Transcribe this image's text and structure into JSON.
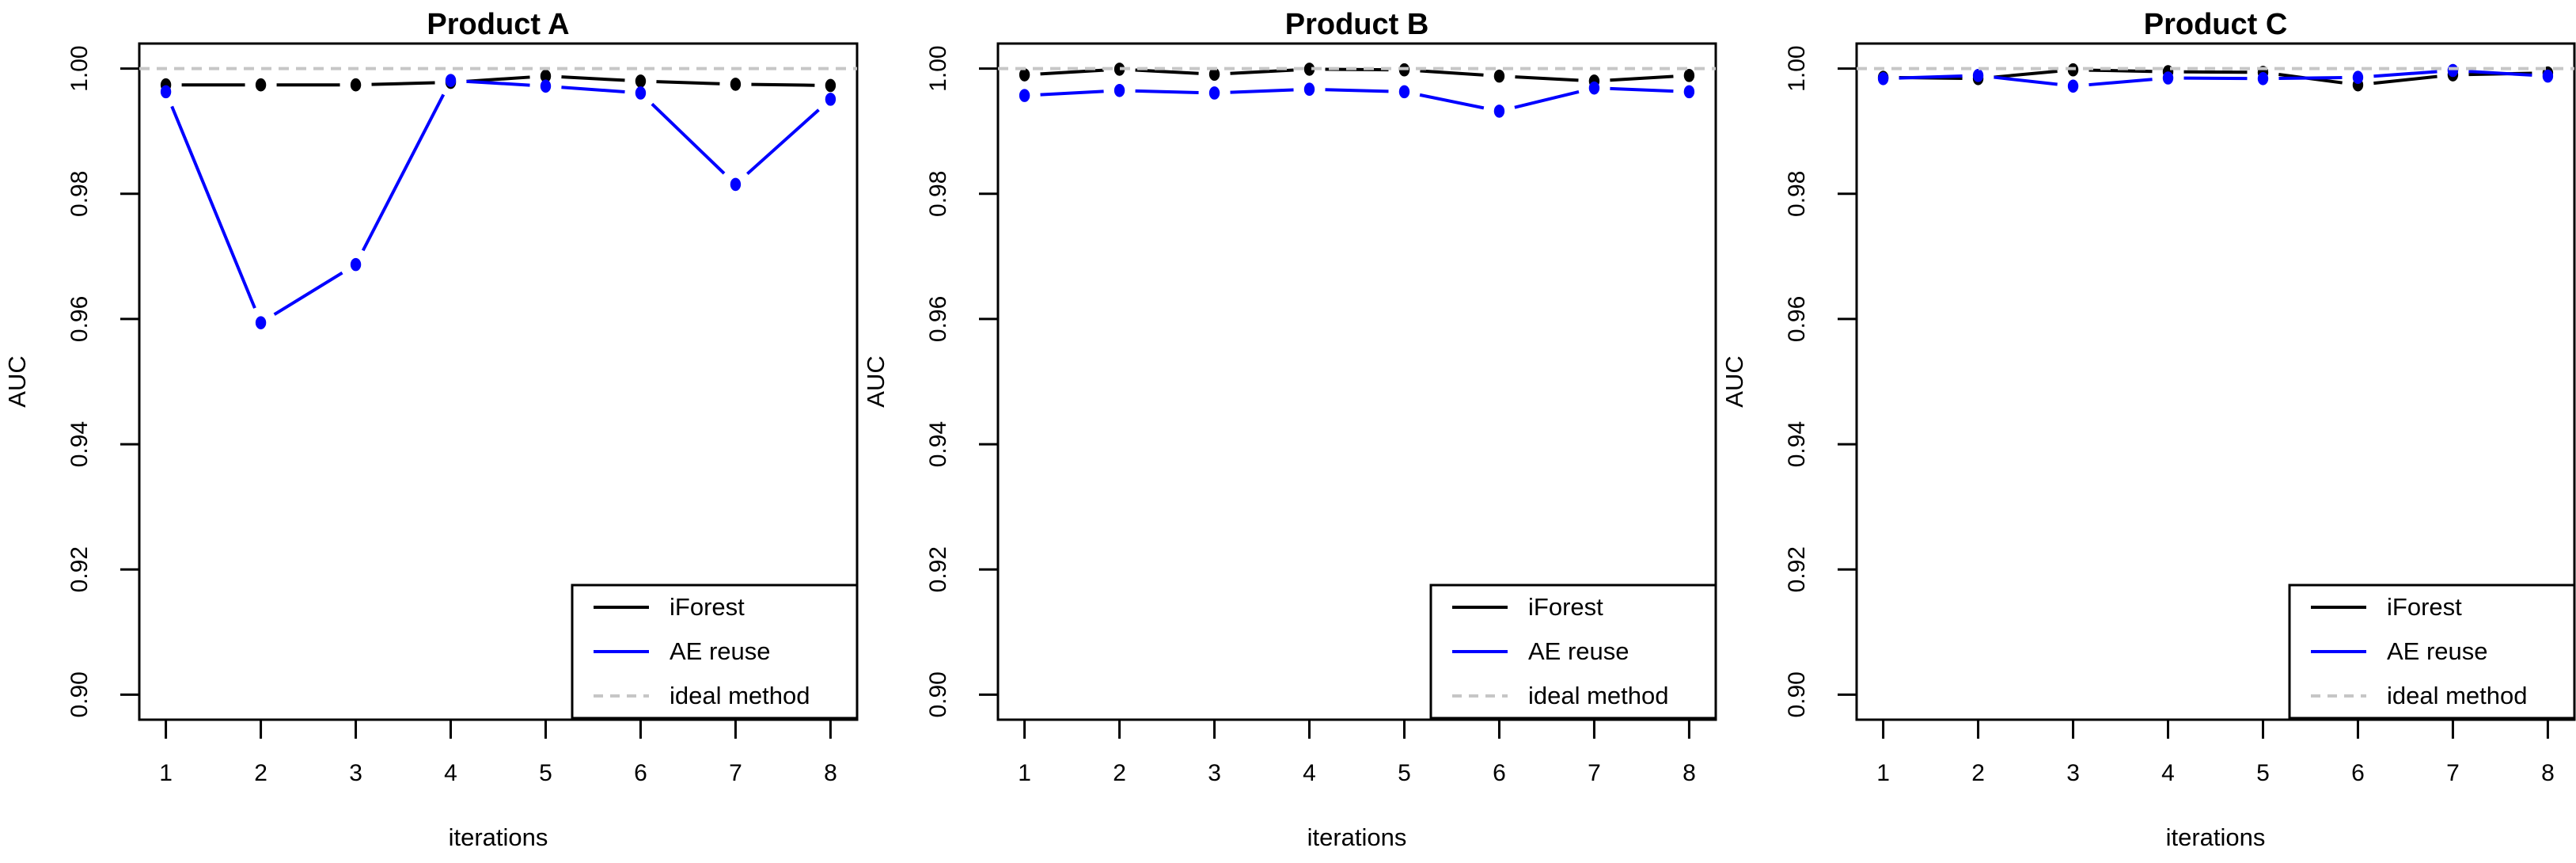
{
  "figure": {
    "background": "#ffffff",
    "accent_black": "#000000",
    "accent_blue": "#0000ff",
    "accent_gray_dashed": "#c6c6c6"
  },
  "chart_data": [
    {
      "type": "line",
      "title": "Product A",
      "xlabel": "iterations",
      "ylabel": "AUC",
      "x": [
        1,
        2,
        3,
        4,
        5,
        6,
        7,
        8
      ],
      "xtick_labels": [
        "1",
        "2",
        "3",
        "4",
        "5",
        "6",
        "7",
        "8"
      ],
      "ytick_values": [
        1.0,
        0.98,
        0.96,
        0.94,
        0.92,
        0.9
      ],
      "ytick_labels": [
        "1.00",
        "0.98",
        "0.96",
        "0.94",
        "0.92",
        "0.90"
      ],
      "ylim": [
        0.9,
        1.0
      ],
      "xlim": [
        1,
        8
      ],
      "grid": false,
      "legend_position": "bottomright",
      "series": [
        {
          "name": "iForest",
          "color": "#000000",
          "style": "solid",
          "marker": "circle",
          "values": [
            0.9974,
            0.9974,
            0.9974,
            0.9978,
            0.9988,
            0.998,
            0.9975,
            0.9973
          ]
        },
        {
          "name": "AE reuse",
          "color": "#0000ff",
          "style": "solid",
          "marker": "circle",
          "values": [
            0.9963,
            0.9594,
            0.9687,
            0.9981,
            0.9972,
            0.9961,
            0.9815,
            0.9951
          ]
        },
        {
          "name": "ideal method",
          "color": "#c6c6c6",
          "style": "dashed",
          "marker": "none",
          "values": [
            1.0,
            1.0,
            1.0,
            1.0,
            1.0,
            1.0,
            1.0,
            1.0
          ]
        }
      ]
    },
    {
      "type": "line",
      "title": "Product B",
      "xlabel": "iterations",
      "ylabel": "AUC",
      "x": [
        1,
        2,
        3,
        4,
        5,
        6,
        7,
        8
      ],
      "xtick_labels": [
        "1",
        "2",
        "3",
        "4",
        "5",
        "6",
        "7",
        "8"
      ],
      "ytick_values": [
        1.0,
        0.98,
        0.96,
        0.94,
        0.92,
        0.9
      ],
      "ytick_labels": [
        "1.00",
        "0.98",
        "0.96",
        "0.94",
        "0.92",
        "0.90"
      ],
      "ylim": [
        0.9,
        1.0
      ],
      "xlim": [
        1,
        8
      ],
      "grid": false,
      "legend_position": "bottomright",
      "series": [
        {
          "name": "iForest",
          "color": "#000000",
          "style": "solid",
          "marker": "circle",
          "values": [
            0.999,
            0.9999,
            0.9991,
            0.9999,
            0.9998,
            0.9988,
            0.998,
            0.9989
          ]
        },
        {
          "name": "AE reuse",
          "color": "#0000ff",
          "style": "solid",
          "marker": "circle",
          "values": [
            0.9957,
            0.9965,
            0.9961,
            0.9967,
            0.9963,
            0.9932,
            0.9969,
            0.9963
          ]
        },
        {
          "name": "ideal method",
          "color": "#c6c6c6",
          "style": "dashed",
          "marker": "none",
          "values": [
            1.0,
            1.0,
            1.0,
            1.0,
            1.0,
            1.0,
            1.0,
            1.0
          ]
        }
      ]
    },
    {
      "type": "line",
      "title": "Product C",
      "xlabel": "iterations",
      "ylabel": "AUC",
      "x": [
        1,
        2,
        3,
        4,
        5,
        6,
        7,
        8
      ],
      "xtick_labels": [
        "1",
        "2",
        "3",
        "4",
        "5",
        "6",
        "7",
        "8"
      ],
      "ytick_values": [
        1.0,
        0.98,
        0.96,
        0.94,
        0.92,
        0.9
      ],
      "ytick_labels": [
        "1.00",
        "0.98",
        "0.96",
        "0.94",
        "0.92",
        "0.90"
      ],
      "ylim": [
        0.9,
        1.0
      ],
      "xlim": [
        1,
        8
      ],
      "grid": false,
      "legend_position": "bottomright",
      "series": [
        {
          "name": "iForest",
          "color": "#000000",
          "style": "solid",
          "marker": "circle",
          "values": [
            0.9986,
            0.9984,
            0.9998,
            0.9995,
            0.9994,
            0.9974,
            0.999,
            0.9993
          ]
        },
        {
          "name": "AE reuse",
          "color": "#0000ff",
          "style": "solid",
          "marker": "circle",
          "values": [
            0.9984,
            0.9989,
            0.9972,
            0.9985,
            0.9984,
            0.9986,
            0.9997,
            0.9988
          ]
        },
        {
          "name": "ideal method",
          "color": "#c6c6c6",
          "style": "dashed",
          "marker": "none",
          "values": [
            1.0,
            1.0,
            1.0,
            1.0,
            1.0,
            1.0,
            1.0,
            1.0
          ]
        }
      ]
    }
  ]
}
